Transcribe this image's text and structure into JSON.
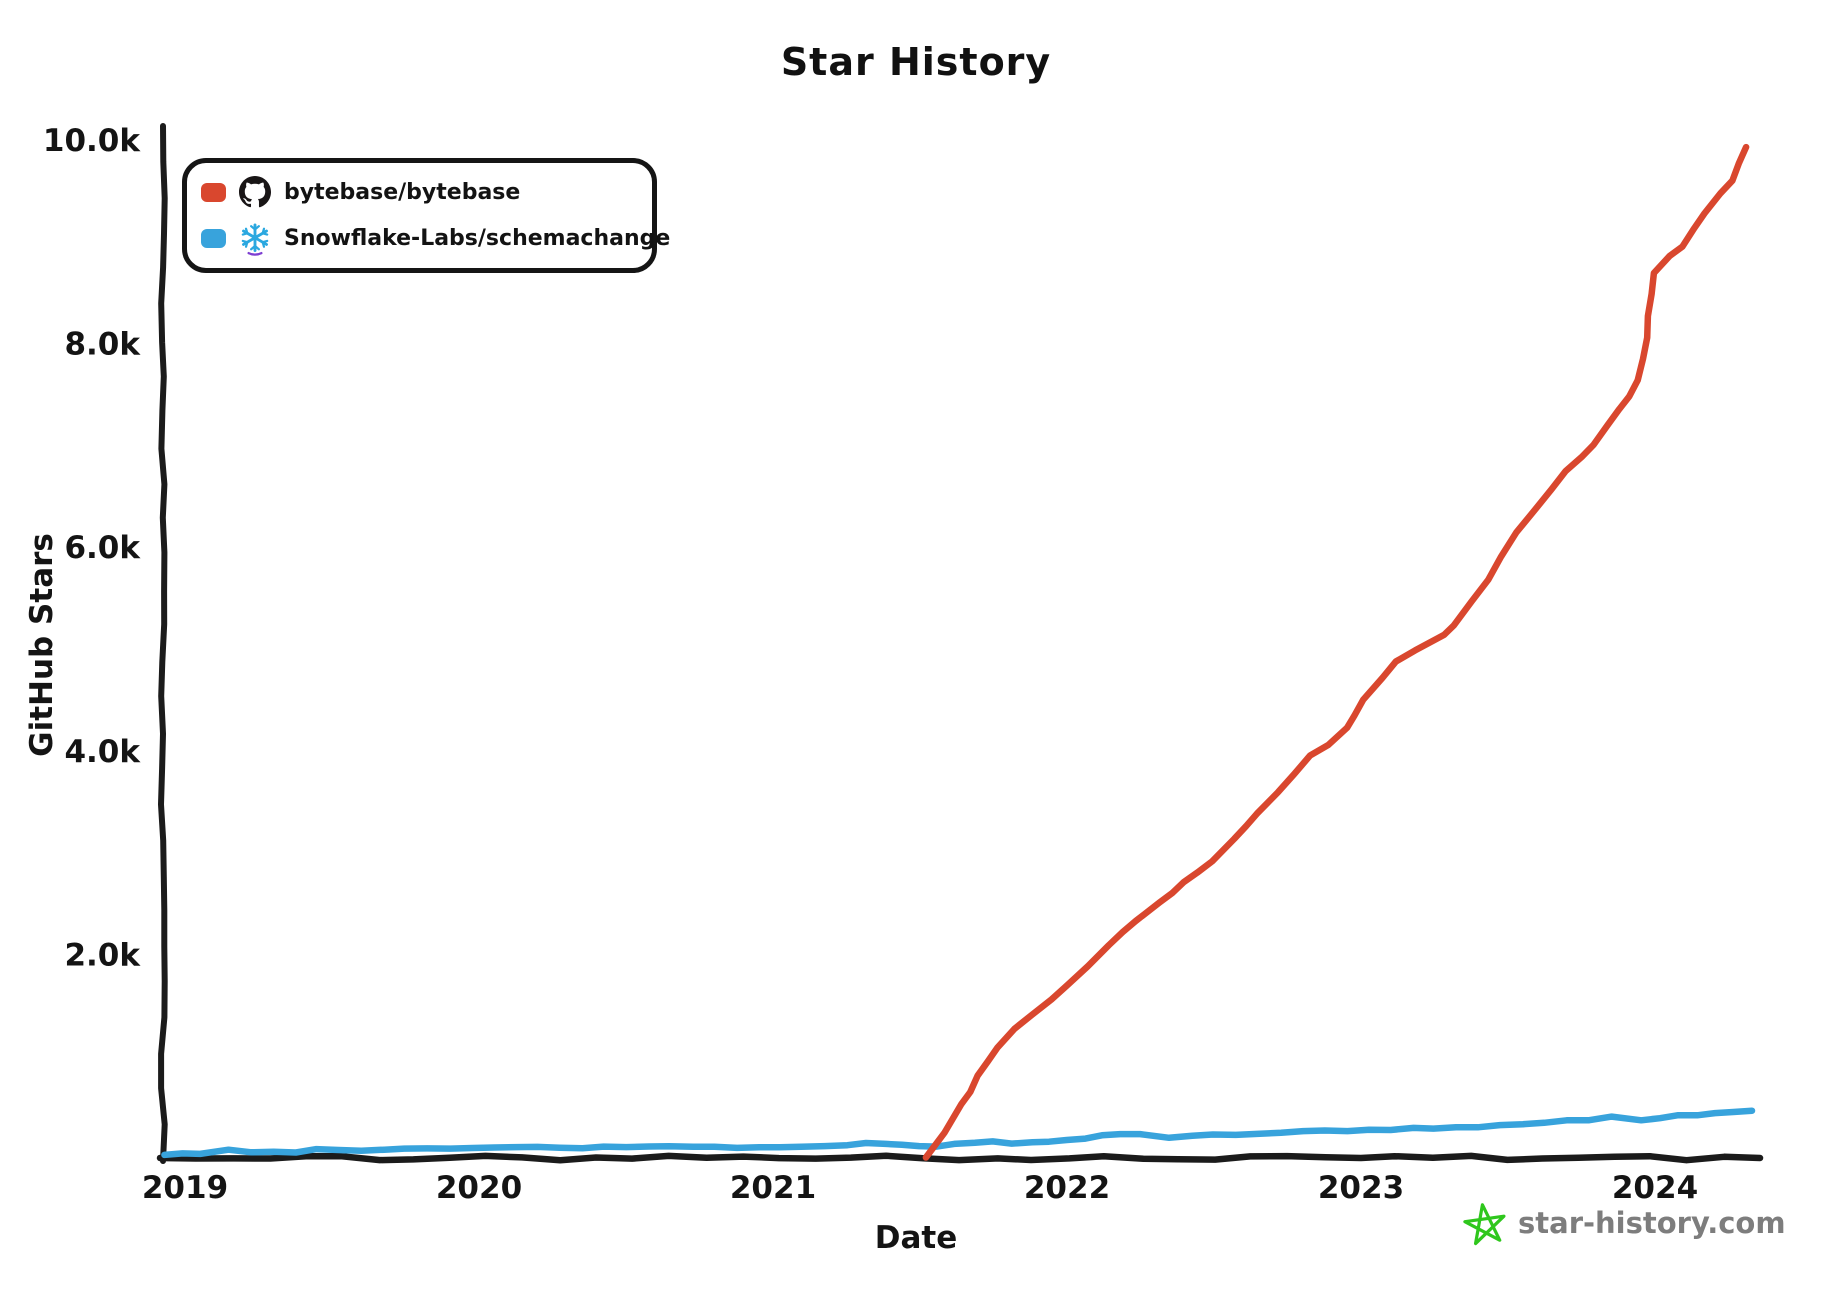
{
  "title": "Star History",
  "legend": {
    "items": [
      {
        "label": "bytebase/bytebase",
        "icon": "github-icon",
        "color": "#d9472e"
      },
      {
        "label": "Snowflake-Labs/schemachange",
        "icon": "snowflake-icon",
        "color": "#38a3dc"
      }
    ]
  },
  "watermark": {
    "text": "star-history.com",
    "color": "#7d7d7d",
    "star_color": "#2fc71d",
    "icon": "star-history-logo-icon"
  },
  "colors": {
    "axis": "#1b1b1b",
    "text": "#141414",
    "github_icon": "#191516",
    "snowflake_blue": "#2ba8e0",
    "snowflake_purple": "#7d3fd1"
  },
  "chart_data": {
    "type": "line",
    "title": "Star History",
    "xlabel": "Date",
    "ylabel": "GitHub Stars",
    "grid": false,
    "legend_position": "top-left",
    "x_range": [
      2018.92,
      2024.38
    ],
    "y_range": [
      0,
      10000
    ],
    "x_ticks": [
      {
        "value": 2019,
        "label": "2019"
      },
      {
        "value": 2020,
        "label": "2020"
      },
      {
        "value": 2021,
        "label": "2021"
      },
      {
        "value": 2022,
        "label": "2022"
      },
      {
        "value": 2023,
        "label": "2023"
      },
      {
        "value": 2024,
        "label": "2024"
      }
    ],
    "y_ticks": [
      {
        "value": 2000,
        "label": "2.0k"
      },
      {
        "value": 4000,
        "label": "4.0k"
      },
      {
        "value": 6000,
        "label": "6.0k"
      },
      {
        "value": 8000,
        "label": "8.0k"
      },
      {
        "value": 10000,
        "label": "10.0k"
      }
    ],
    "series": [
      {
        "name": "bytebase/bytebase",
        "color": "#d9472e",
        "points": [
          [
            2021.52,
            5
          ],
          [
            2021.58,
            260
          ],
          [
            2021.64,
            520
          ],
          [
            2021.7,
            800
          ],
          [
            2021.76,
            1080
          ],
          [
            2021.82,
            1270
          ],
          [
            2021.88,
            1410
          ],
          [
            2021.95,
            1550
          ],
          [
            2022.0,
            1700
          ],
          [
            2022.07,
            1890
          ],
          [
            2022.14,
            2100
          ],
          [
            2022.23,
            2320
          ],
          [
            2022.31,
            2500
          ],
          [
            2022.4,
            2700
          ],
          [
            2022.49,
            2910
          ],
          [
            2022.57,
            3130
          ],
          [
            2022.65,
            3380
          ],
          [
            2022.72,
            3600
          ],
          [
            2022.77,
            3780
          ],
          [
            2022.83,
            3950
          ],
          [
            2022.89,
            4050
          ],
          [
            2022.95,
            4220
          ],
          [
            2023.01,
            4500
          ],
          [
            2023.07,
            4720
          ],
          [
            2023.12,
            4880
          ],
          [
            2023.18,
            4980
          ],
          [
            2023.23,
            5050
          ],
          [
            2023.28,
            5140
          ],
          [
            2023.32,
            5240
          ],
          [
            2023.38,
            5460
          ],
          [
            2023.43,
            5690
          ],
          [
            2023.48,
            5920
          ],
          [
            2023.53,
            6150
          ],
          [
            2023.59,
            6360
          ],
          [
            2023.65,
            6570
          ],
          [
            2023.7,
            6760
          ],
          [
            2023.75,
            6880
          ],
          [
            2023.79,
            7000
          ],
          [
            2023.84,
            7200
          ],
          [
            2023.88,
            7360
          ],
          [
            2023.91,
            7490
          ],
          [
            2023.94,
            7650
          ],
          [
            2023.97,
            8050
          ],
          [
            2024.0,
            8700
          ],
          [
            2024.05,
            8870
          ],
          [
            2024.09,
            8960
          ],
          [
            2024.13,
            9120
          ],
          [
            2024.17,
            9290
          ],
          [
            2024.22,
            9470
          ],
          [
            2024.26,
            9600
          ],
          [
            2024.31,
            9930
          ]
        ]
      },
      {
        "name": "Snowflake-Labs/schemachange",
        "color": "#38a3dc",
        "points": [
          [
            2018.93,
            30
          ],
          [
            2019.05,
            50
          ],
          [
            2019.15,
            70
          ],
          [
            2019.3,
            55
          ],
          [
            2019.45,
            75
          ],
          [
            2019.6,
            65
          ],
          [
            2019.75,
            85
          ],
          [
            2019.9,
            80
          ],
          [
            2020.05,
            95
          ],
          [
            2020.2,
            110
          ],
          [
            2020.35,
            100
          ],
          [
            2020.5,
            115
          ],
          [
            2020.65,
            105
          ],
          [
            2020.8,
            120
          ],
          [
            2020.95,
            95
          ],
          [
            2021.1,
            110
          ],
          [
            2021.25,
            130
          ],
          [
            2021.38,
            140
          ],
          [
            2021.5,
            105
          ],
          [
            2021.62,
            130
          ],
          [
            2021.75,
            150
          ],
          [
            2021.88,
            150
          ],
          [
            2022.0,
            180
          ],
          [
            2022.12,
            210
          ],
          [
            2022.25,
            235
          ],
          [
            2022.35,
            205
          ],
          [
            2022.5,
            225
          ],
          [
            2022.65,
            240
          ],
          [
            2022.8,
            255
          ],
          [
            2022.95,
            265
          ],
          [
            2023.1,
            280
          ],
          [
            2023.25,
            290
          ],
          [
            2023.4,
            305
          ],
          [
            2023.55,
            330
          ],
          [
            2023.7,
            360
          ],
          [
            2023.85,
            395
          ],
          [
            2023.95,
            380
          ],
          [
            2024.08,
            410
          ],
          [
            2024.2,
            435
          ],
          [
            2024.33,
            465
          ]
        ]
      }
    ]
  }
}
